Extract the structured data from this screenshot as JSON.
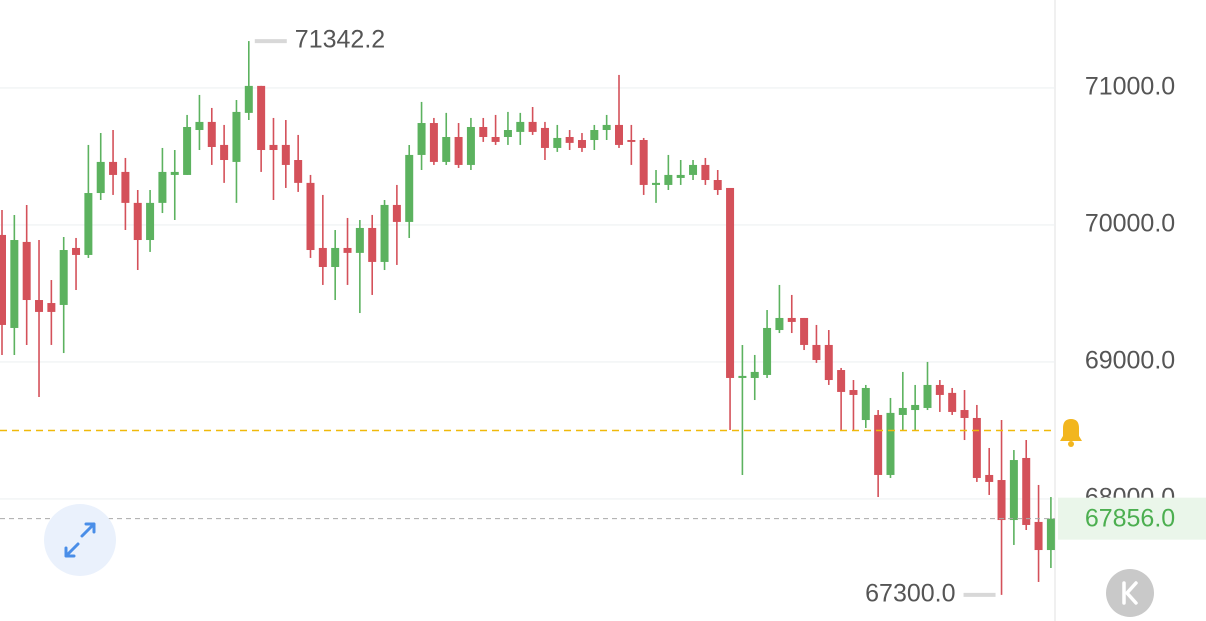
{
  "chart_data": {
    "type": "candlestick",
    "up_color": "#5cb25f",
    "down_color": "#d4515a",
    "ylim": [
      67109,
      71642
    ],
    "yticks": [
      {
        "value": 71000,
        "label": "71000.0"
      },
      {
        "value": 70000,
        "label": "70000.0"
      },
      {
        "value": 69000,
        "label": "69000.0"
      },
      {
        "value": 68000,
        "label": "68000.0"
      }
    ],
    "grid": true,
    "high_label": "71342.2",
    "low_label": "67300.0",
    "last_price": {
      "value": 67856.0,
      "label": "67856.0"
    },
    "alert_price": 68500,
    "open": [
      69927,
      69248,
      69876,
      69452,
      69430,
      69416,
      69832,
      69781,
      70233,
      70460,
      70387,
      70161,
      69890,
      70161,
      70365,
      70365,
      70693,
      70752,
      70584,
      70460,
      70818,
      71015,
      70584,
      70584,
      70474,
      70307,
      69832,
      69693,
      69832,
      69796,
      69978,
      69730,
      70146,
      70022,
      70511,
      70744,
      70460,
      70642,
      70438,
      70715,
      70642,
      70642,
      70679,
      70752,
      70708,
      70562,
      70642,
      70620,
      70620,
      70693,
      70730,
      70620,
      70620,
      70292,
      70292,
      70343,
      70365,
      70438,
      70328,
      70270,
      68883,
      68883,
      68905,
      69233,
      69321,
      69321,
      69124,
      69124,
      68941,
      68795,
      68576,
      68613,
      68175,
      68613,
      68649,
      68664,
      68832,
      68774,
      68649,
      68591,
      68175,
      68138,
      67846,
      68299,
      67832,
      67627
    ],
    "high": [
      70109,
      70073,
      70146,
      69890,
      69598,
      69912,
      69905,
      70584,
      70671,
      70693,
      70489,
      70255,
      70255,
      70562,
      70547,
      70803,
      70949,
      70854,
      70730,
      70912,
      71342.2,
      71015,
      70781,
      70766,
      70657,
      70365,
      70219,
      69963,
      70051,
      70036,
      70073,
      70182,
      70292,
      70584,
      70898,
      70781,
      70818,
      70744,
      70781,
      70781,
      70803,
      70825,
      70818,
      70861,
      70752,
      70730,
      70693,
      70671,
      70730,
      70803,
      71095,
      70730,
      70635,
      70401,
      70511,
      70474,
      70474,
      70489,
      70401,
      70270,
      69124,
      69051,
      69379,
      69562,
      69489,
      69321,
      69270,
      69233,
      68956,
      68868,
      68832,
      68649,
      68737,
      68927,
      68832,
      69000,
      68868,
      68810,
      68795,
      68686,
      68372,
      68576,
      68357,
      68430,
      68102,
      68014
    ],
    "low": [
      69051,
      69051,
      69124,
      68744,
      69124,
      69065,
      69525,
      69759,
      70182,
      70219,
      69963,
      69671,
      69803,
      70087,
      70036,
      70365,
      70547,
      70438,
      70307,
      70161,
      70766,
      70387,
      70182,
      70270,
      70241,
      69759,
      69562,
      69452,
      69562,
      69357,
      69489,
      69671,
      69708,
      69905,
      70401,
      70438,
      70438,
      70416,
      70401,
      70606,
      70584,
      70584,
      70584,
      70657,
      70474,
      70533,
      70547,
      70533,
      70547,
      70620,
      70562,
      70438,
      70219,
      70161,
      70255,
      70292,
      70328,
      70292,
      70219,
      68503,
      68175,
      68722,
      68883,
      69211,
      69211,
      69087,
      68993,
      68832,
      68503,
      68503,
      68518,
      68014,
      68153,
      68503,
      68503,
      68649,
      68635,
      68613,
      68430,
      68124,
      68029,
      67300.0,
      67664,
      67773,
      67394,
      67496
    ],
    "close": [
      69270,
      69890,
      69452,
      69365,
      69365,
      69817,
      69781,
      70233,
      70460,
      70365,
      70161,
      69890,
      70161,
      70387,
      70387,
      70715,
      70752,
      70569,
      70474,
      70825,
      71015,
      70547,
      70547,
      70438,
      70307,
      69817,
      69693,
      69832,
      69796,
      69978,
      69730,
      70146,
      70022,
      70511,
      70744,
      70460,
      70642,
      70438,
      70715,
      70642,
      70606,
      70693,
      70752,
      70679,
      70562,
      70635,
      70599,
      70562,
      70693,
      70730,
      70584,
      70606,
      70292,
      70307,
      70365,
      70365,
      70438,
      70328,
      70255,
      68883,
      68898,
      68927,
      69248,
      69321,
      69292,
      69124,
      69014,
      68868,
      68781,
      68759,
      68810,
      68175,
      68628,
      68664,
      68686,
      68832,
      68759,
      68635,
      68591,
      68153,
      68124,
      67846,
      68284,
      67810,
      67627,
      67856.0
    ]
  }
}
